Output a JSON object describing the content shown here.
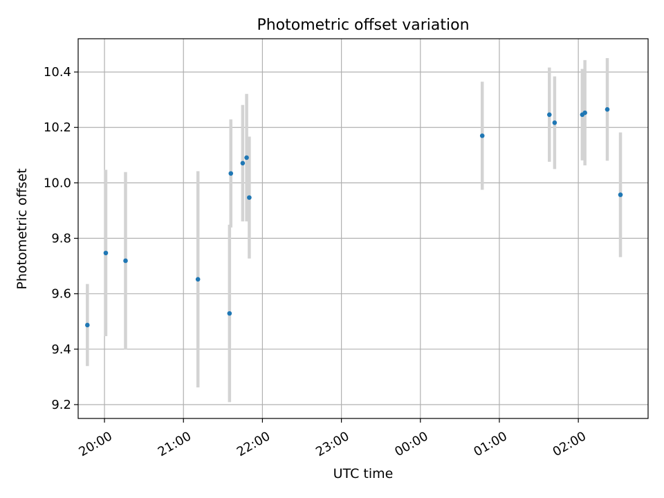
{
  "chart_data": {
    "type": "scatter",
    "title": "Photometric offset variation",
    "xlabel": "UTC time",
    "ylabel": "Photometric offset",
    "x_axis_kind": "time",
    "xlim": [
      "19:40",
      "02:53"
    ],
    "ylim": [
      9.15,
      10.52
    ],
    "xticks": [
      {
        "time": "20:00",
        "label": "20:00"
      },
      {
        "time": "21:00",
        "label": "21:00"
      },
      {
        "time": "22:00",
        "label": "22:00"
      },
      {
        "time": "23:00",
        "label": "23:00"
      },
      {
        "time": "00:00",
        "label": "00:00"
      },
      {
        "time": "01:00",
        "label": "01:00"
      },
      {
        "time": "02:00",
        "label": "02:00"
      }
    ],
    "yticks": [
      {
        "value": 9.2,
        "label": "9.2"
      },
      {
        "value": 9.4,
        "label": "9.4"
      },
      {
        "value": 9.6,
        "label": "9.6"
      },
      {
        "value": 9.8,
        "label": "9.8"
      },
      {
        "value": 10.0,
        "label": "10.0"
      },
      {
        "value": 10.2,
        "label": "10.2"
      },
      {
        "value": 10.4,
        "label": "10.4"
      }
    ],
    "grid": true,
    "legend": null,
    "colors": {
      "point": "#1f77b4",
      "errorbar": "#d3d3d3",
      "grid": "#b0b0b0"
    },
    "series": [
      {
        "points": [
          {
            "time": "19:47",
            "y": 9.487,
            "err": 0.148
          },
          {
            "time": "20:01",
            "y": 9.747,
            "err": 0.3
          },
          {
            "time": "20:16",
            "y": 9.719,
            "err": 0.32
          },
          {
            "time": "21:11",
            "y": 9.652,
            "err": 0.39
          },
          {
            "time": "21:35",
            "y": 9.529,
            "err": 0.32
          },
          {
            "time": "21:36",
            "y": 10.034,
            "err": 0.195
          },
          {
            "time": "21:45",
            "y": 10.071,
            "err": 0.21
          },
          {
            "time": "21:48",
            "y": 10.091,
            "err": 0.23
          },
          {
            "time": "21:50",
            "y": 9.947,
            "err": 0.22
          },
          {
            "time": "00:47",
            "y": 10.17,
            "err": 0.195
          },
          {
            "time": "01:38",
            "y": 10.246,
            "err": 0.17
          },
          {
            "time": "01:42",
            "y": 10.217,
            "err": 0.167
          },
          {
            "time": "02:03",
            "y": 10.246,
            "err": 0.165
          },
          {
            "time": "02:05",
            "y": 10.253,
            "err": 0.19
          },
          {
            "time": "02:22",
            "y": 10.265,
            "err": 0.185
          },
          {
            "time": "02:32",
            "y": 9.957,
            "err": 0.225
          }
        ]
      }
    ]
  }
}
